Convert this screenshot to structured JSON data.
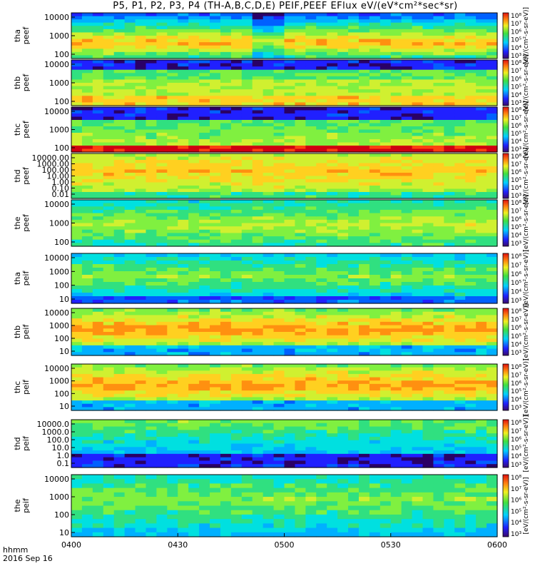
{
  "figure": {
    "title": "P5, P1, P2, P3, P4 (TH-A,B,C,D,E) PEIF,PEEF EFlux eV/(eV*cm²*sec*sr)",
    "time_label": "hhmm",
    "date_label": "2016 Sep 16"
  },
  "chart_data": {
    "type": "heatmap",
    "title": "P5, P1, P2, P3, P4 (TH-A,B,C,D,E) PEIF,PEEF EFlux eV/(eV*cm²*sec*sr)",
    "xlabel": "hhmm",
    "x_ticks": [
      "0400",
      "0430",
      "0500",
      "0530",
      "0600"
    ],
    "x_range": [
      "0400",
      "0600"
    ],
    "colorbar_unit": "[eV/(cm²-s-sr-eV)]",
    "colorbar_tick_labels": [
      "10³",
      "10⁴",
      "10⁵",
      "10⁶",
      "10⁷",
      "10⁸"
    ],
    "panels": [
      {
        "name": "tha peef",
        "y_ticks": [
          "100",
          "1000",
          "10000"
        ],
        "y_scale": "log"
      },
      {
        "name": "thb peef",
        "y_ticks": [
          "100",
          "1000",
          "10000"
        ],
        "y_scale": "log"
      },
      {
        "name": "thc peef",
        "y_ticks": [
          "100",
          "1000",
          "10000"
        ],
        "y_scale": "log"
      },
      {
        "name": "thd peef",
        "y_ticks": [
          "0.01",
          "0.10",
          "1.00",
          "10.00",
          "100.00",
          "1000.00",
          "10000.00"
        ],
        "y_scale": "log"
      },
      {
        "name": "the peef",
        "y_ticks": [
          "100",
          "1000",
          "10000"
        ],
        "y_scale": "log"
      },
      {
        "name": "tha peif",
        "y_ticks": [
          "10",
          "100",
          "1000",
          "10000"
        ],
        "y_scale": "log"
      },
      {
        "name": "thb peif",
        "y_ticks": [
          "10",
          "100",
          "1000",
          "10000"
        ],
        "y_scale": "log"
      },
      {
        "name": "thc peif",
        "y_ticks": [
          "10",
          "100",
          "1000",
          "10000"
        ],
        "y_scale": "log"
      },
      {
        "name": "thd peif",
        "y_ticks": [
          "0.1",
          "1.0",
          "10.0",
          "100.0",
          "1000.0",
          "10000.0"
        ],
        "y_scale": "log"
      },
      {
        "name": "the peif",
        "y_ticks": [
          "10",
          "100",
          "1000",
          "10000"
        ],
        "y_scale": "log"
      }
    ]
  }
}
